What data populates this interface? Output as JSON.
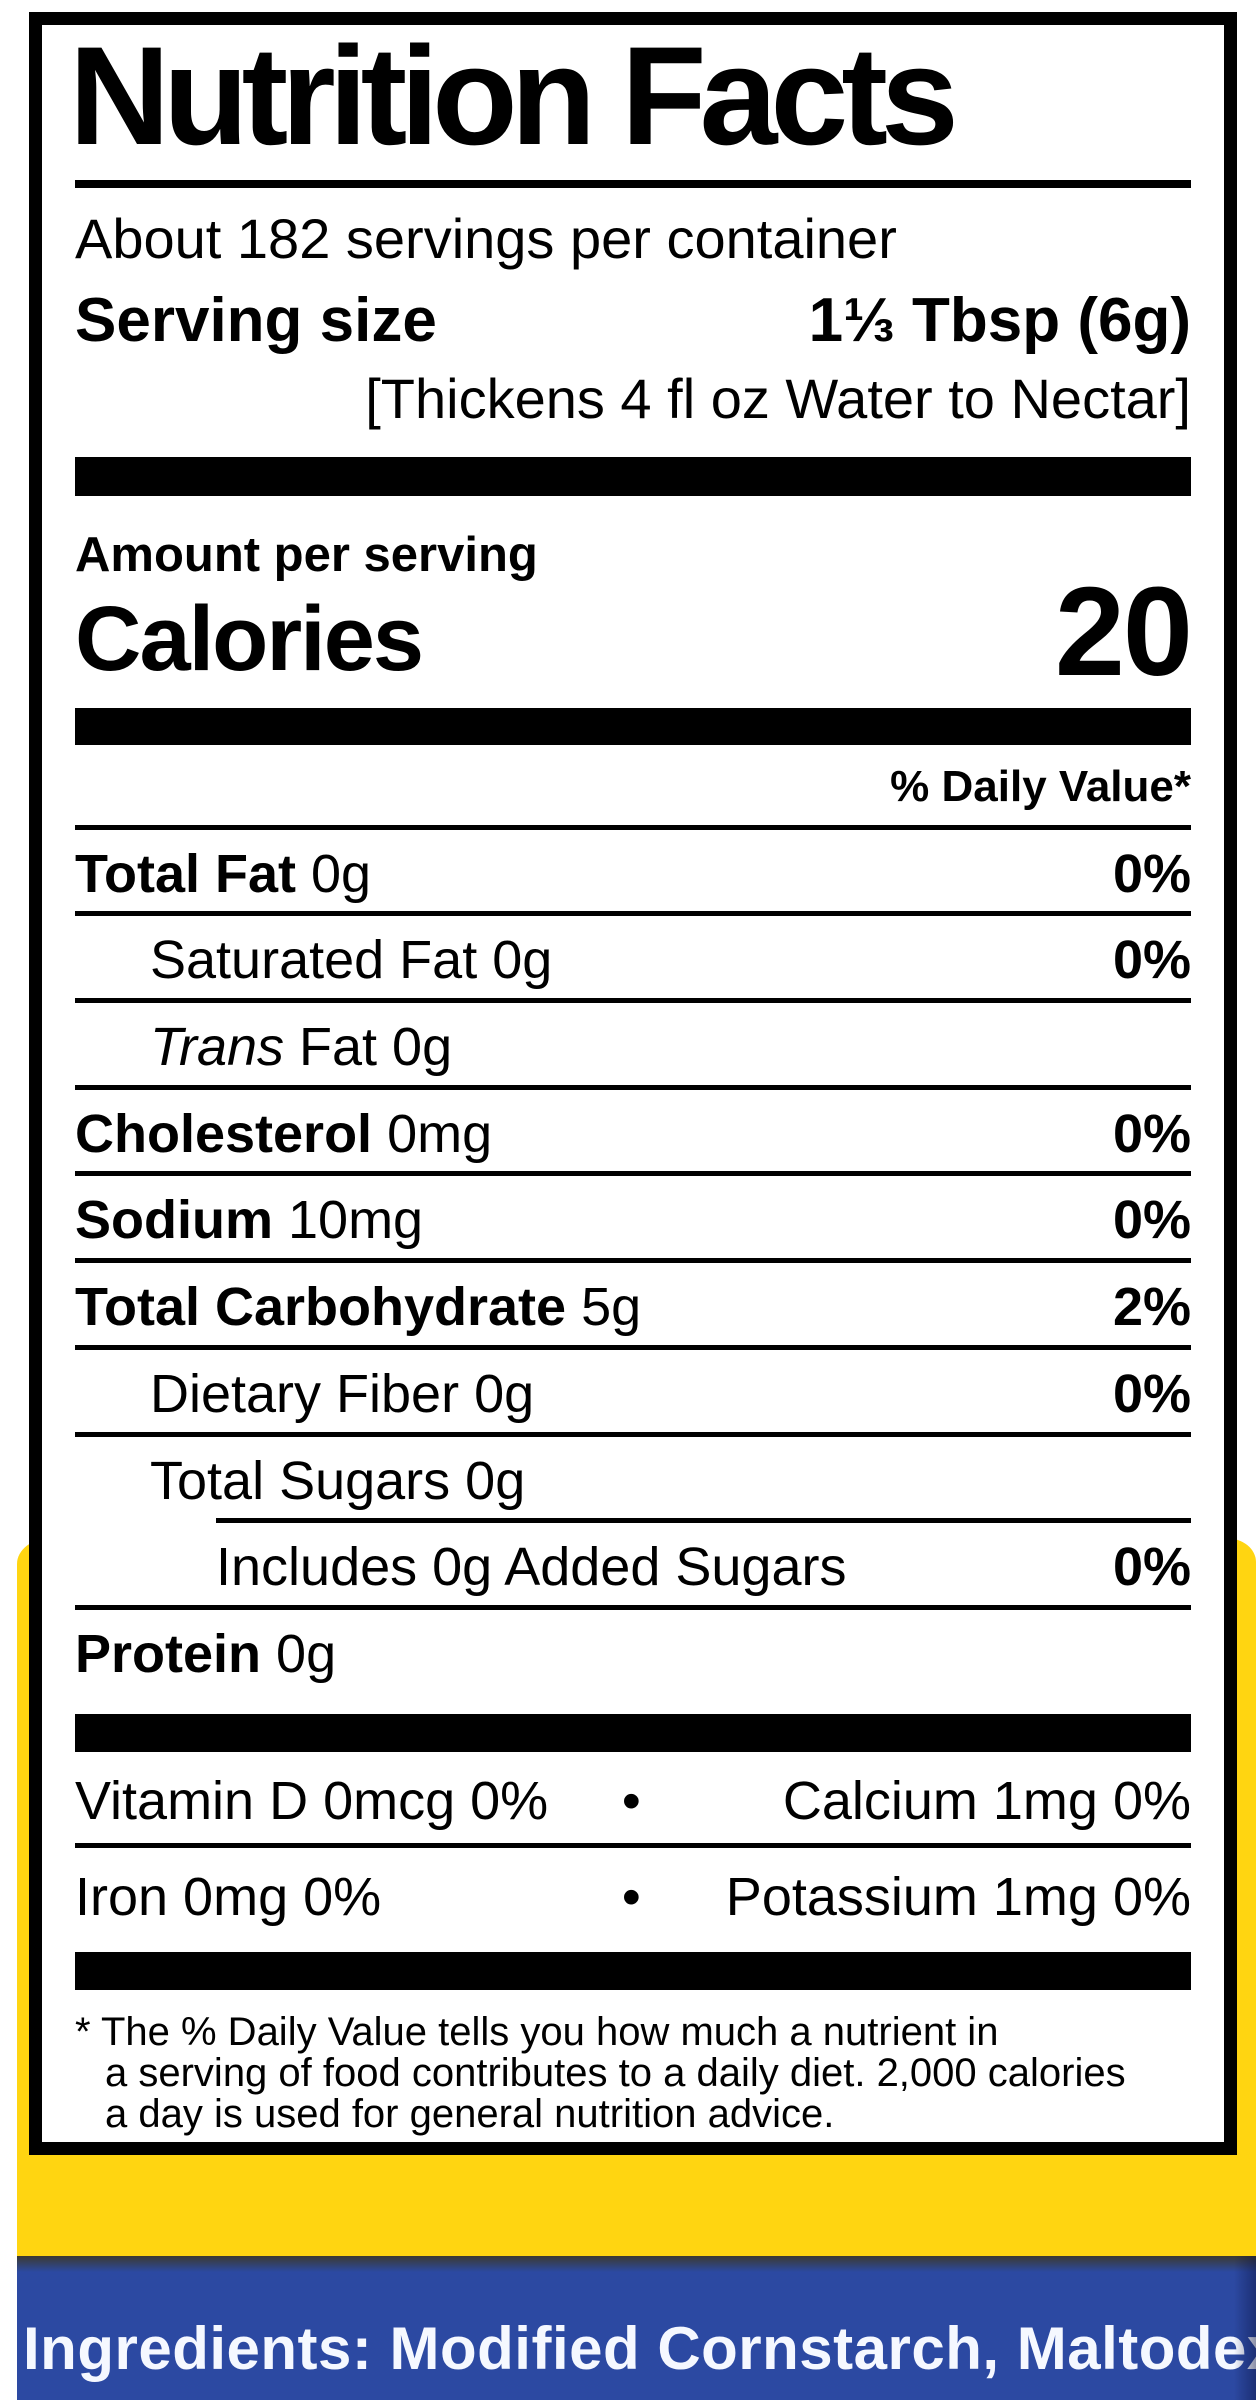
{
  "label": {
    "title": "Nutrition Facts",
    "servings_per_container": "About 182 servings per container",
    "serving_size_label": "Serving size",
    "serving_size_value": "1⅓ Tbsp (6g)",
    "serving_note": "[Thickens 4 fl oz Water to Nectar]",
    "amount_per_serving": "Amount per serving",
    "calories_label": "Calories",
    "calories_value": "20",
    "daily_value_header": "% Daily Value*",
    "rows": {
      "total_fat": {
        "name": "Total Fat",
        "amount": " 0g",
        "dv": "0%"
      },
      "saturated_fat": {
        "text": "Saturated Fat 0g",
        "dv": "0%"
      },
      "trans_fat": {
        "italic": "Trans",
        "text": " Fat 0g"
      },
      "cholesterol": {
        "name": "Cholesterol",
        "amount": " 0mg",
        "dv": "0%"
      },
      "sodium": {
        "name": "Sodium",
        "amount": " 10mg",
        "dv": "0%"
      },
      "total_carbohydrate": {
        "name": "Total Carbohydrate",
        "amount": " 5g",
        "dv": "2%"
      },
      "dietary_fiber": {
        "text": "Dietary Fiber 0g",
        "dv": "0%"
      },
      "total_sugars": {
        "text": "Total Sugars 0g"
      },
      "added_sugars": {
        "text": "Includes 0g Added Sugars",
        "dv": "0%"
      },
      "protein": {
        "name": "Protein",
        "amount": " 0g"
      }
    },
    "micros": {
      "vitamin_d": "Vitamin D 0mcg 0%",
      "calcium": "Calcium 1mg 0%",
      "iron": "Iron 0mg 0%",
      "potassium": "Potassium 1mg 0%",
      "bullet": "•"
    },
    "footnote_lines": [
      "* The % Daily Value tells you how much a nutrient in",
      "a serving of food contributes to a daily diet. 2,000 calories",
      "a day is used for general nutrition advice."
    ]
  },
  "packaging": {
    "ingredients_text": "Ingredients: Modified Cornstarch, Maltodex",
    "colors": {
      "container_yellow": "#FFD511",
      "container_blue": "#2C49A2",
      "ingredients_text_color": "#F5F8FF",
      "label_black": "#000000",
      "label_white": "#FFFFFF"
    }
  }
}
